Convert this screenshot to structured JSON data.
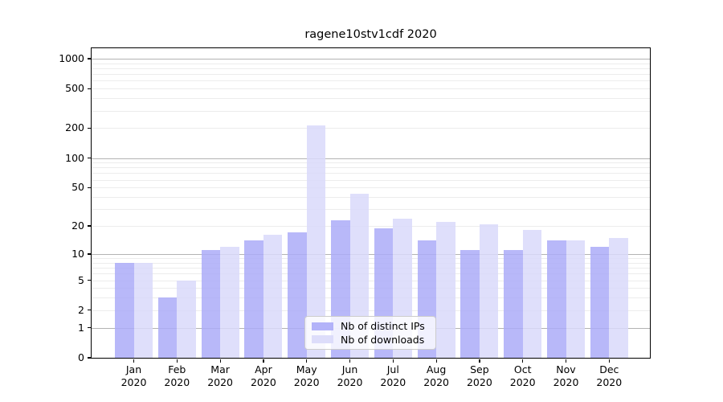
{
  "chart_data": {
    "type": "bar",
    "title": "ragene10stv1cdf 2020",
    "categories": [
      "Jan",
      "Feb",
      "Mar",
      "Apr",
      "May",
      "Jun",
      "Jul",
      "Aug",
      "Sep",
      "Oct",
      "Nov",
      "Dec"
    ],
    "category_year": "2020",
    "series": [
      {
        "name": "Nb of distinct IPs",
        "color": "#ababf8",
        "values": [
          8,
          3,
          11,
          14,
          17,
          23,
          19,
          14,
          11,
          11,
          14,
          12
        ]
      },
      {
        "name": "Nb of downloads",
        "color": "#d9d9fa",
        "values": [
          8,
          5,
          12,
          16,
          213,
          43,
          24,
          22,
          21,
          18,
          14,
          15
        ]
      }
    ],
    "yscale": "log1p",
    "yticks": [
      0,
      1,
      2,
      5,
      10,
      20,
      50,
      100,
      200,
      500,
      1000
    ],
    "major_gridlines": [
      1,
      10,
      100,
      1000
    ],
    "ylim": [
      0,
      1285
    ],
    "xlabel": "",
    "ylabel": "",
    "grid": true,
    "legend_position": "lower center"
  }
}
